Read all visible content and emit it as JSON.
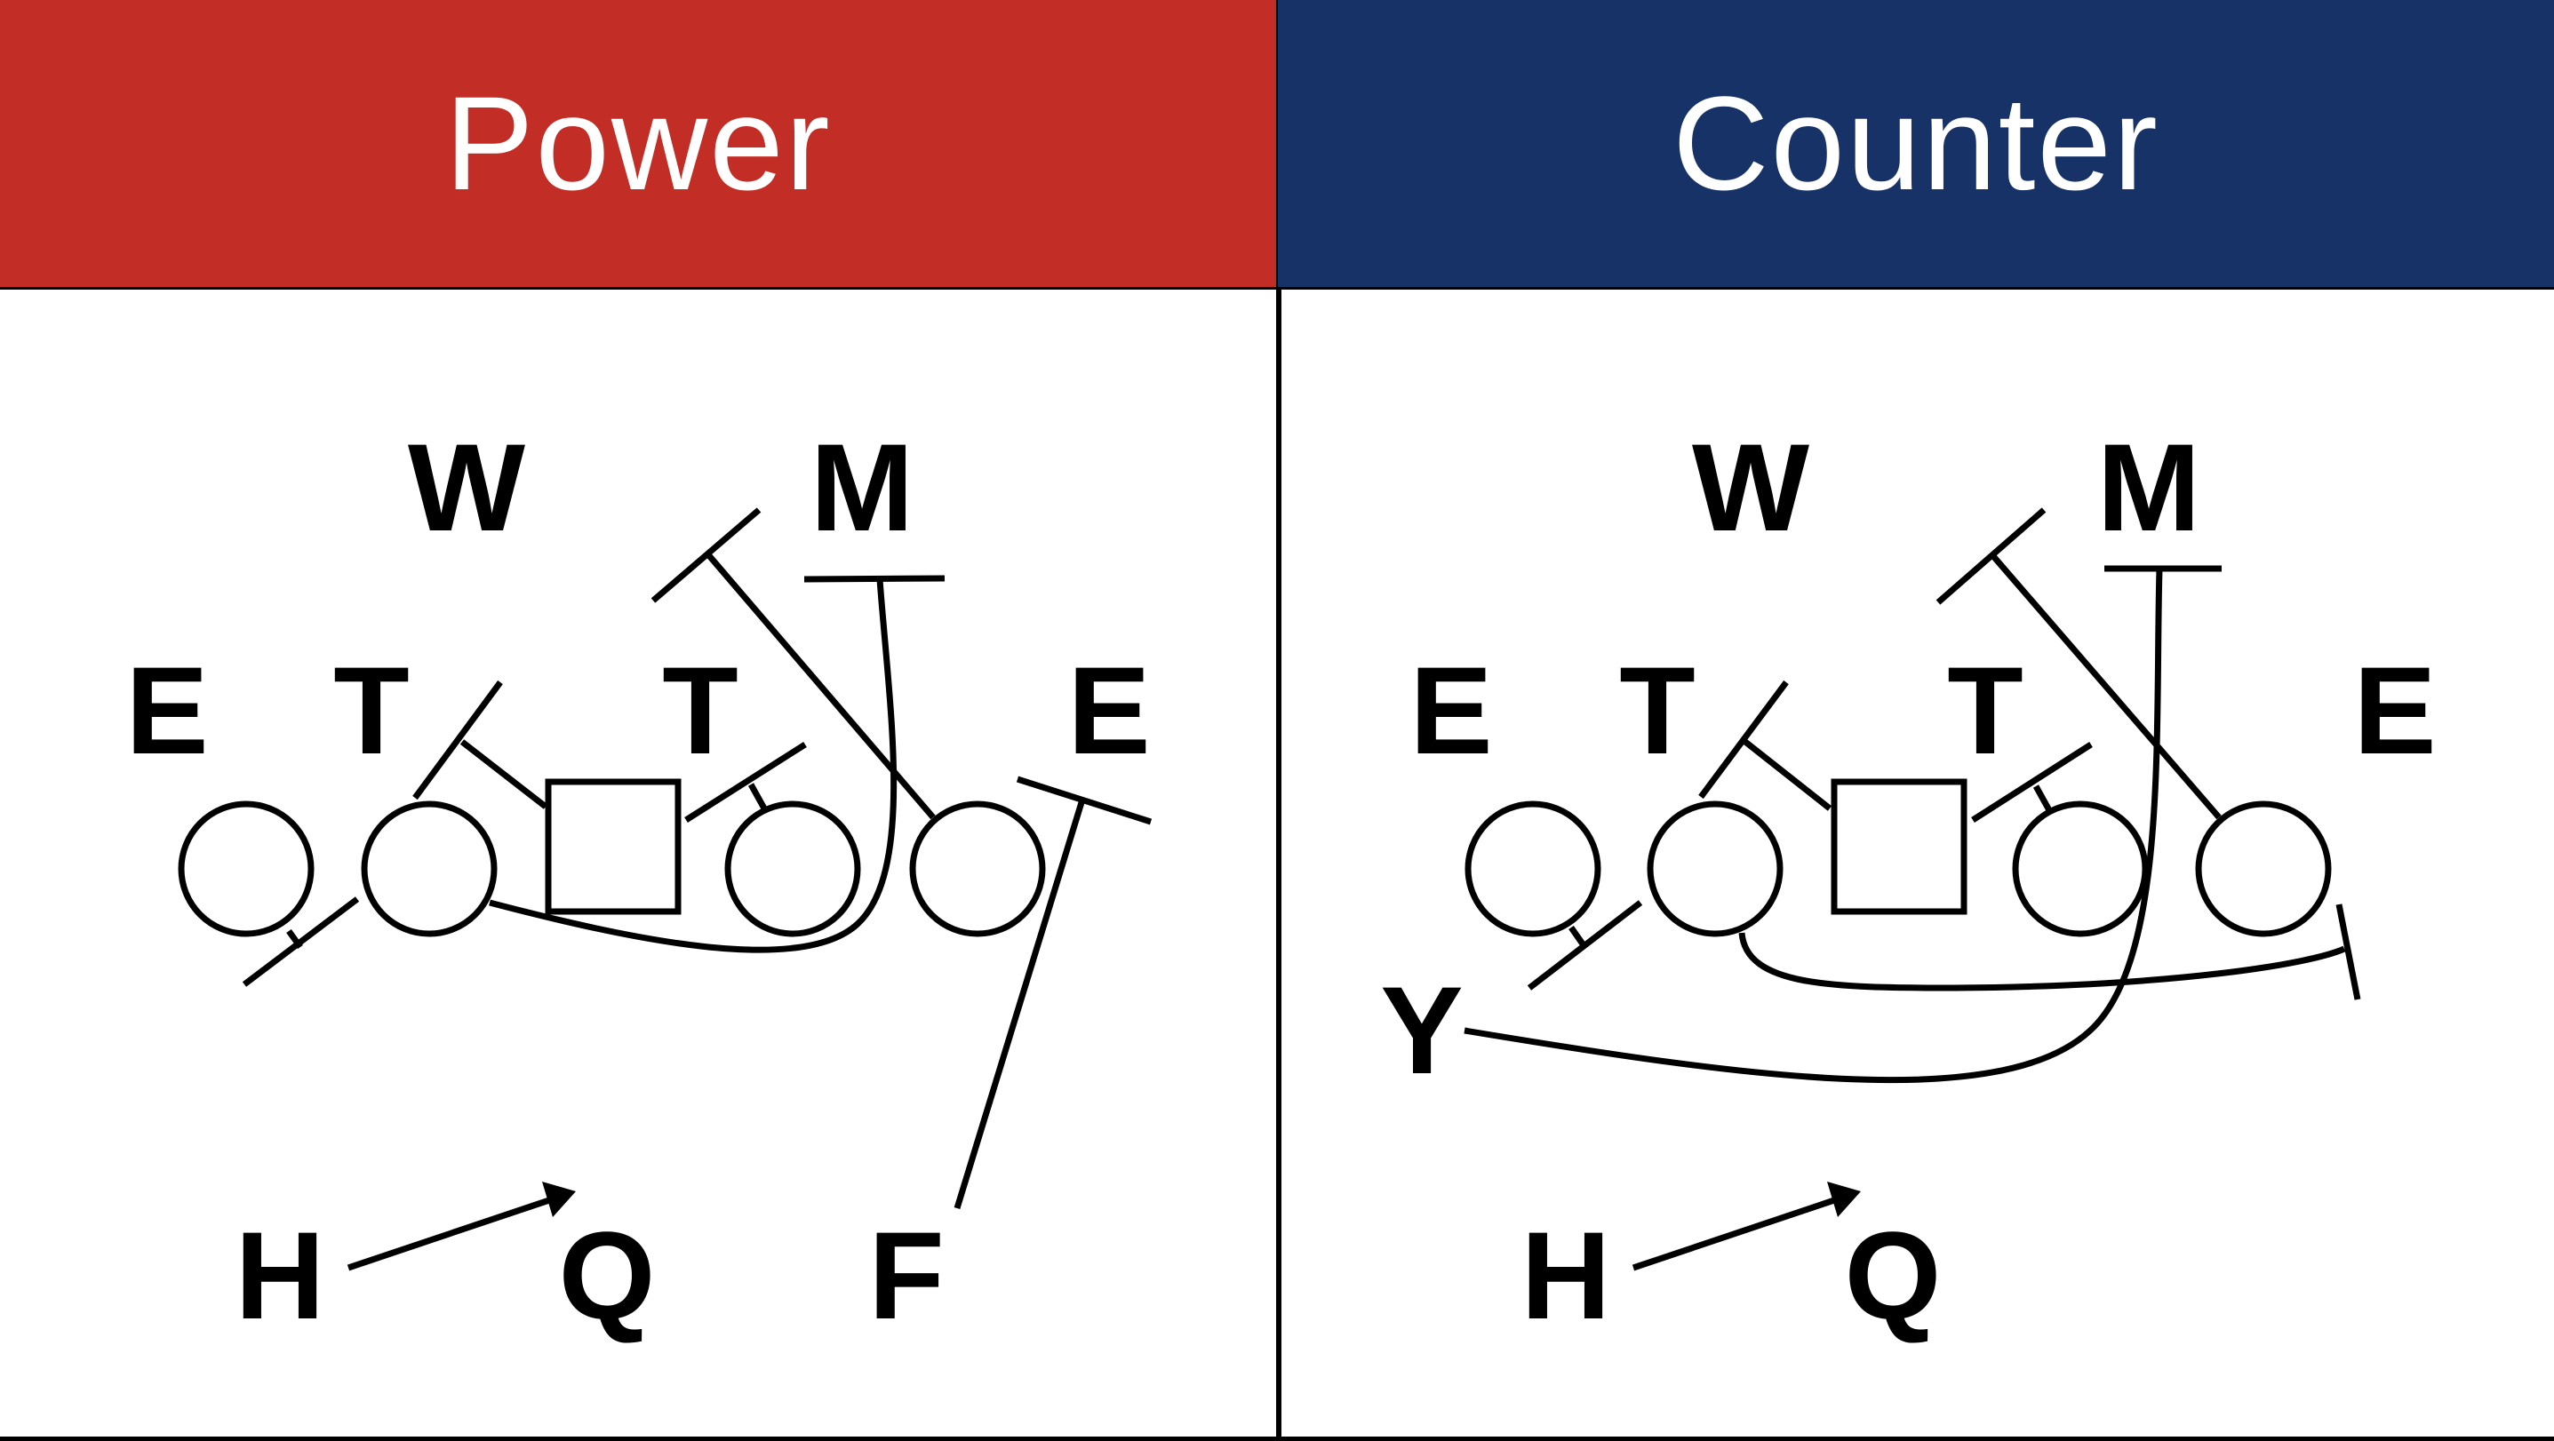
{
  "colors": {
    "power_header": "#C22D25",
    "counter_header": "#163266",
    "ink": "#000000"
  },
  "panels": [
    {
      "title": "Power",
      "labels": {
        "w": "W",
        "m": "M",
        "e_left": "E",
        "t_left": "T",
        "t_right": "T",
        "e_right": "E",
        "h": "H",
        "q": "Q",
        "f": "F"
      }
    },
    {
      "title": "Counter",
      "labels": {
        "w": "W",
        "m": "M",
        "e_left": "E",
        "t_left": "T",
        "t_right": "T",
        "e_right": "E",
        "y": "Y",
        "h": "H",
        "q": "Q"
      }
    }
  ]
}
